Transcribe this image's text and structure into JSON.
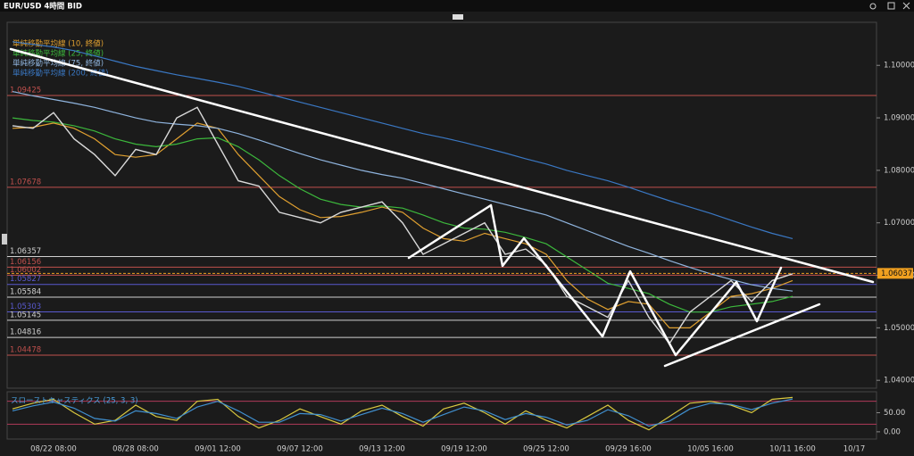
{
  "window_title": "EUR/USD 4時間 BID",
  "chart_data": [
    {
      "type": "line",
      "categories": [
        null,
        null,
        "08/22 08:00",
        null,
        null,
        null,
        "08/28 08:00",
        null,
        null,
        null,
        "09/01 12:00",
        null,
        null,
        null,
        "09/07 12:00",
        null,
        null,
        null,
        "09/13 12:00",
        null,
        null,
        null,
        "09/19 12:00",
        null,
        null,
        null,
        "09/25 12:00",
        null,
        null,
        null,
        "09/29 16:00",
        null,
        null,
        null,
        "10/05 16:00",
        null,
        null,
        null,
        "10/11 16:00",
        null,
        null,
        "10/17"
      ],
      "values": [
        1.0885,
        1.088,
        1.091,
        1.086,
        1.083,
        1.079,
        1.084,
        1.083,
        1.09,
        1.092,
        1.085,
        1.078,
        1.077,
        1.072,
        1.071,
        1.07,
        1.072,
        1.073,
        1.074,
        1.07,
        1.064,
        1.066,
        1.068,
        1.07,
        1.064,
        1.065,
        1.062,
        1.056,
        1.054,
        1.052,
        1.059,
        1.052,
        1.047,
        1.053,
        1.056,
        1.059,
        1.055,
        1.059,
        1.0603,
        null,
        null,
        null
      ],
      "color": "#d9d9d9",
      "series": [
        {
          "name": "単純移動平均線 (10, 終値)",
          "color": "#e0a030",
          "values": [
            1.088,
            1.0882,
            1.089,
            1.088,
            1.086,
            1.083,
            1.0825,
            1.083,
            1.086,
            1.089,
            1.088,
            1.083,
            1.079,
            1.075,
            1.0725,
            1.071,
            1.0712,
            1.072,
            1.073,
            1.072,
            1.069,
            1.067,
            1.0665,
            1.068,
            1.067,
            1.066,
            1.064,
            1.059,
            1.0555,
            1.0535,
            1.055,
            1.0545,
            1.05,
            1.05,
            1.053,
            1.056,
            1.0565,
            1.0575,
            1.059,
            null,
            null,
            null
          ]
        },
        {
          "name": "単純移動平均線 (25, 終値)",
          "color": "#3cb83c",
          "values": [
            1.09,
            1.0895,
            1.0892,
            1.0885,
            1.0875,
            1.086,
            1.085,
            1.0845,
            1.085,
            1.086,
            1.0862,
            1.0845,
            1.082,
            1.079,
            1.0765,
            1.0745,
            1.0735,
            1.073,
            1.0732,
            1.0728,
            1.0715,
            1.07,
            1.069,
            1.0688,
            1.0682,
            1.0672,
            1.066,
            1.0635,
            1.061,
            1.0585,
            1.0575,
            1.0565,
            1.0545,
            1.053,
            1.053,
            1.054,
            1.0545,
            1.055,
            1.056,
            null,
            null,
            null
          ]
        },
        {
          "name": "単純移動平均線 (75, 終値)",
          "color": "#8fb4de",
          "values": [
            1.095,
            1.0942,
            1.0935,
            1.0928,
            1.092,
            1.091,
            1.09,
            1.0892,
            1.0888,
            1.0885,
            1.088,
            1.087,
            1.0858,
            1.0845,
            1.0832,
            1.082,
            1.081,
            1.08,
            1.0792,
            1.0785,
            1.0775,
            1.0765,
            1.0755,
            1.0745,
            1.0735,
            1.0725,
            1.0715,
            1.07,
            1.0685,
            1.067,
            1.0655,
            1.0642,
            1.0628,
            1.0615,
            1.0603,
            1.0592,
            1.0582,
            1.0575,
            1.057,
            null,
            null,
            null
          ]
        },
        {
          "name": "単純移動平均線 (200, 終値)",
          "color": "#3a78c4",
          "values": [
            1.1045,
            1.104,
            1.1035,
            1.1028,
            1.1018,
            1.1008,
            1.0998,
            1.099,
            1.0982,
            1.0975,
            1.0968,
            1.096,
            1.095,
            1.094,
            1.093,
            1.092,
            1.091,
            1.09,
            1.089,
            1.088,
            1.087,
            1.0862,
            1.0853,
            1.0843,
            1.0833,
            1.0822,
            1.0812,
            1.08,
            1.079,
            1.078,
            1.0768,
            1.0755,
            1.0742,
            1.073,
            1.0718,
            1.0705,
            1.0692,
            1.068,
            1.067,
            null,
            null,
            null
          ]
        }
      ],
      "ylim": [
        1.0385,
        1.1082
      ],
      "yticks": [
        {
          "value": 1.04,
          "label": "1.04000"
        },
        {
          "value": 1.05,
          "label": "1.05000"
        },
        {
          "value": 1.06,
          "label": "1.06000"
        },
        {
          "value": 1.07,
          "label": "1.07000"
        },
        {
          "value": 1.08,
          "label": "1.08000"
        },
        {
          "value": 1.09,
          "label": "1.09000"
        },
        {
          "value": 1.1,
          "label": "1.10000"
        }
      ],
      "levels": [
        {
          "value": 1.09425,
          "color": "#c0504d"
        },
        {
          "value": 1.07678,
          "color": "#c0504d"
        },
        {
          "value": 1.06357,
          "color": "#d0d0d0"
        },
        {
          "value": 1.06156,
          "color": "#c0504d"
        },
        {
          "value": 1.06002,
          "color": "#c0504d"
        },
        {
          "value": 1.05827,
          "color": "#5a5ad0"
        },
        {
          "value": 1.05584,
          "color": "#d0d0d0"
        },
        {
          "value": 1.05303,
          "color": "#5a5ad0"
        },
        {
          "value": 1.05145,
          "color": "#d0d0d0"
        },
        {
          "value": 1.04816,
          "color": "#d0d0d0"
        },
        {
          "value": 1.04478,
          "color": "#c0504d"
        }
      ],
      "last_price": 1.06037,
      "last_price_color": "#f0a020"
    },
    {
      "type": "line",
      "title": "スローストキャスティクス (25, 3, 3)",
      "series": [
        {
          "color": "#d8c840",
          "values": [
            60,
            75,
            85,
            50,
            20,
            30,
            70,
            40,
            30,
            80,
            85,
            40,
            10,
            30,
            60,
            40,
            20,
            55,
            70,
            40,
            15,
            60,
            75,
            50,
            20,
            55,
            30,
            10,
            40,
            70,
            30,
            5,
            40,
            75,
            80,
            70,
            50,
            85,
            90,
            null,
            null,
            null
          ]
        },
        {
          "color": "#4090d0",
          "values": [
            55,
            68,
            78,
            62,
            35,
            28,
            55,
            48,
            35,
            65,
            80,
            55,
            25,
            25,
            48,
            45,
            28,
            45,
            62,
            48,
            25,
            45,
            65,
            55,
            32,
            48,
            38,
            18,
            30,
            58,
            42,
            15,
            28,
            60,
            75,
            72,
            58,
            75,
            86,
            null,
            null,
            null
          ]
        }
      ],
      "ylim": [
        -19,
        105
      ],
      "yticks": [
        {
          "value": 0,
          "label": "0.00"
        },
        {
          "value": 50,
          "label": "50.00"
        }
      ],
      "levels": [
        {
          "value": 80,
          "color": "#b03a5a"
        },
        {
          "value": 20,
          "color": "#b03a5a"
        }
      ]
    }
  ]
}
